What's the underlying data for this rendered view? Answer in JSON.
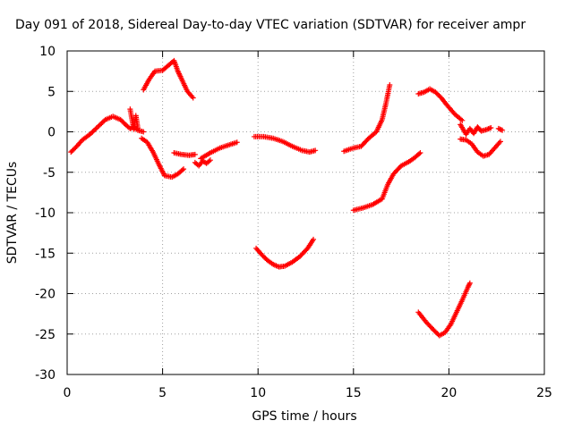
{
  "chart_data": {
    "type": "scatter",
    "title": "Day 091 of 2018, Sidereal Day-to-day VTEC variation (SDTVAR) for receiver ampr",
    "xlabel": "GPS time / hours",
    "ylabel": "SDTVAR / TECUs",
    "xlim": [
      0,
      25
    ],
    "ylim": [
      -30,
      10
    ],
    "x_ticks": [
      0,
      5,
      10,
      15,
      20,
      25
    ],
    "y_ticks": [
      -30,
      -25,
      -20,
      -15,
      -10,
      -5,
      0,
      5,
      10
    ],
    "x_tick_labels": [
      "0",
      "5",
      "10",
      "15",
      "20",
      "25"
    ],
    "y_tick_labels": [
      "-30",
      "-25",
      "-20",
      "-15",
      "-10",
      "-5",
      "0",
      "5",
      "10"
    ],
    "grid": true,
    "marker": "+",
    "color": "#ff0000",
    "series": [
      {
        "points": [
          [
            0.2,
            -2.5
          ],
          [
            0.5,
            -1.8
          ],
          [
            0.8,
            -1.0
          ],
          [
            1.2,
            -0.3
          ],
          [
            1.6,
            0.6
          ],
          [
            2.0,
            1.5
          ],
          [
            2.4,
            1.9
          ],
          [
            2.8,
            1.5
          ],
          [
            3.1,
            0.8
          ],
          [
            3.3,
            0.4
          ],
          [
            3.5,
            0.6
          ],
          [
            3.7,
            0.2
          ],
          [
            4.0,
            0.0
          ]
        ]
      },
      {
        "points": [
          [
            3.3,
            2.8
          ],
          [
            3.4,
            1.5
          ],
          [
            3.5,
            0.3
          ],
          [
            3.6,
            2.0
          ],
          [
            3.7,
            0.5
          ]
        ]
      },
      {
        "points": [
          [
            4.0,
            5.2
          ],
          [
            4.3,
            6.5
          ],
          [
            4.6,
            7.5
          ],
          [
            5.0,
            7.6
          ],
          [
            5.3,
            8.2
          ],
          [
            5.6,
            8.8
          ],
          [
            5.8,
            7.5
          ],
          [
            6.0,
            6.5
          ],
          [
            6.3,
            5.0
          ],
          [
            6.6,
            4.2
          ]
        ]
      },
      {
        "points": [
          [
            3.9,
            -0.8
          ],
          [
            4.2,
            -1.3
          ],
          [
            4.5,
            -2.5
          ],
          [
            4.8,
            -4.0
          ],
          [
            5.1,
            -5.4
          ],
          [
            5.5,
            -5.6
          ],
          [
            5.8,
            -5.2
          ],
          [
            6.1,
            -4.6
          ]
        ]
      },
      {
        "points": [
          [
            5.6,
            -2.6
          ],
          [
            6.0,
            -2.8
          ],
          [
            6.4,
            -2.9
          ],
          [
            6.7,
            -2.8
          ]
        ]
      },
      {
        "points": [
          [
            6.7,
            -3.8
          ],
          [
            6.9,
            -4.2
          ],
          [
            7.1,
            -3.6
          ],
          [
            7.3,
            -3.9
          ],
          [
            7.5,
            -3.5
          ]
        ]
      },
      {
        "points": [
          [
            7.0,
            -3.3
          ],
          [
            7.5,
            -2.6
          ],
          [
            8.0,
            -2.0
          ],
          [
            8.5,
            -1.6
          ],
          [
            8.9,
            -1.3
          ]
        ]
      },
      {
        "points": [
          [
            9.8,
            -0.6
          ],
          [
            10.3,
            -0.6
          ],
          [
            10.8,
            -0.8
          ],
          [
            11.3,
            -1.2
          ],
          [
            11.8,
            -1.8
          ],
          [
            12.3,
            -2.3
          ],
          [
            12.7,
            -2.5
          ],
          [
            13.0,
            -2.3
          ]
        ]
      },
      {
        "points": [
          [
            9.9,
            -14.4
          ],
          [
            10.2,
            -15.2
          ],
          [
            10.5,
            -15.9
          ],
          [
            10.8,
            -16.4
          ],
          [
            11.1,
            -16.7
          ],
          [
            11.4,
            -16.6
          ],
          [
            11.8,
            -16.1
          ],
          [
            12.2,
            -15.4
          ],
          [
            12.6,
            -14.4
          ],
          [
            12.9,
            -13.3
          ]
        ]
      },
      {
        "points": [
          [
            14.5,
            -2.4
          ],
          [
            15.0,
            -2.0
          ],
          [
            15.4,
            -1.8
          ],
          [
            15.8,
            -0.8
          ],
          [
            16.2,
            0.0
          ],
          [
            16.5,
            1.5
          ],
          [
            16.7,
            3.5
          ],
          [
            16.9,
            5.8
          ]
        ]
      },
      {
        "points": [
          [
            15.0,
            -9.7
          ],
          [
            15.5,
            -9.4
          ],
          [
            16.0,
            -9.0
          ],
          [
            16.5,
            -8.3
          ],
          [
            16.8,
            -6.5
          ],
          [
            17.1,
            -5.2
          ],
          [
            17.5,
            -4.2
          ],
          [
            17.9,
            -3.7
          ],
          [
            18.2,
            -3.2
          ],
          [
            18.5,
            -2.6
          ]
        ]
      },
      {
        "points": [
          [
            18.4,
            4.7
          ],
          [
            18.7,
            4.9
          ],
          [
            19.0,
            5.3
          ],
          [
            19.3,
            4.9
          ],
          [
            19.6,
            4.2
          ],
          [
            19.9,
            3.3
          ],
          [
            20.3,
            2.2
          ],
          [
            20.7,
            1.4
          ]
        ]
      },
      {
        "points": [
          [
            20.6,
            0.9
          ],
          [
            20.9,
            -0.3
          ],
          [
            21.1,
            0.4
          ],
          [
            21.3,
            -0.2
          ],
          [
            21.5,
            0.6
          ],
          [
            21.7,
            0.1
          ],
          [
            22.0,
            0.3
          ],
          [
            22.2,
            0.5
          ]
        ]
      },
      {
        "points": [
          [
            20.6,
            -0.9
          ],
          [
            20.9,
            -1.0
          ],
          [
            21.2,
            -1.5
          ],
          [
            21.5,
            -2.5
          ],
          [
            21.8,
            -3.0
          ],
          [
            22.1,
            -2.8
          ],
          [
            22.4,
            -2.0
          ],
          [
            22.7,
            -1.2
          ]
        ]
      },
      {
        "points": [
          [
            22.6,
            0.4
          ],
          [
            22.8,
            0.2
          ]
        ]
      },
      {
        "points": [
          [
            18.4,
            -22.3
          ],
          [
            18.8,
            -23.5
          ],
          [
            19.2,
            -24.5
          ],
          [
            19.5,
            -25.2
          ],
          [
            19.8,
            -24.8
          ],
          [
            20.1,
            -23.8
          ],
          [
            20.4,
            -22.3
          ],
          [
            20.7,
            -20.8
          ],
          [
            21.0,
            -19.2
          ],
          [
            21.1,
            -18.7
          ]
        ]
      }
    ]
  }
}
